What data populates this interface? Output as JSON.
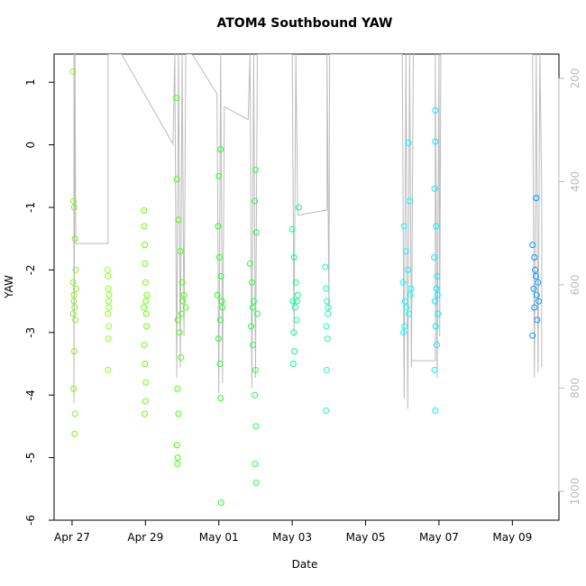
{
  "chart_data": {
    "type": "scatter",
    "title": "ATOM4 Southbound YAW",
    "x_label": "Date",
    "y_label": "YAW",
    "xlim": [
      -0.49,
      13.27
    ],
    "xticks": [
      {
        "value": 0,
        "label": "Apr 27"
      },
      {
        "value": 2,
        "label": "Apr 29"
      },
      {
        "value": 4,
        "label": "May 01"
      },
      {
        "value": 6,
        "label": "May 03"
      },
      {
        "value": 8,
        "label": "May 05"
      },
      {
        "value": 10,
        "label": "May 07"
      },
      {
        "value": 12,
        "label": "May 09"
      }
    ],
    "ylim": [
      -6,
      1.45
    ],
    "yticks": [
      -6,
      -5,
      -4,
      -3,
      -2,
      -1,
      0,
      1
    ],
    "y2lim": [
      1056,
      153
    ],
    "y2ticks": [
      200,
      400,
      600,
      800,
      1000
    ],
    "series": [
      {
        "color": "#bbbbbb",
        "axis": "y2",
        "x": [
          0.05,
          0.05,
          0.08,
          0.1,
          0.98,
          0.98,
          1.35,
          2.75,
          2.8,
          2.85,
          2.9,
          2.95,
          3.0,
          3.05,
          3.1,
          3.27,
          3.95,
          4.0,
          4.05,
          4.1,
          4.15,
          4.8,
          4.85,
          4.9,
          4.95,
          5.0,
          5.05,
          6.0,
          6.05,
          6.1,
          6.15,
          6.95,
          6.95,
          7.0,
          7.02,
          9.0,
          9.05,
          9.1,
          9.15,
          9.2,
          9.25,
          9.3,
          9.25,
          9.9,
          9.9,
          9.95,
          10.0,
          10.02,
          10.05,
          12.55,
          12.6,
          12.65,
          12.7,
          12.75,
          12.8,
          12.8
        ],
        "values": [
          153,
          830,
          153,
          520,
          520,
          153,
          153,
          327,
          153,
          780,
          153,
          760,
          153,
          700,
          153,
          153,
          230,
          810,
          153,
          790,
          255,
          280,
          153,
          800,
          153,
          780,
          153,
          153,
          700,
          153,
          465,
          455,
          153,
          650,
          153,
          153,
          820,
          153,
          840,
          153,
          760,
          153,
          747,
          747,
          153,
          780,
          153,
          700,
          153,
          153,
          780,
          153,
          770,
          153,
          420,
          760
        ]
      },
      {
        "color": "#88ee22",
        "x": [
          0.02,
          0.04,
          0.06,
          0.08,
          0.1,
          0.03,
          0.05,
          0.07,
          0.09,
          0.11,
          0.05,
          0.06,
          0.04,
          0.08,
          0.07,
          0.03
        ],
        "values": [
          1.17,
          -0.9,
          -1.0,
          -1.5,
          -2.0,
          -2.2,
          -2.4,
          -2.6,
          -2.8,
          -2.3,
          -2.5,
          -3.3,
          -3.9,
          -4.3,
          -4.62,
          -2.7
        ]
      },
      {
        "color": "#88ff22",
        "x": [
          0.97,
          0.98,
          0.99,
          1.0,
          1.01,
          0.98,
          1.0,
          0.99,
          1.01,
          0.98
        ],
        "values": [
          -2.0,
          -2.1,
          -2.3,
          -2.5,
          -2.6,
          -2.7,
          -2.9,
          -3.1,
          -2.4,
          -3.6
        ]
      },
      {
        "color": "#66ff00",
        "x": [
          1.96,
          1.97,
          1.98,
          1.99,
          2.0,
          2.01,
          2.02,
          2.03,
          1.97,
          1.99,
          2.01,
          2.0,
          1.98,
          2.04,
          1.96
        ],
        "values": [
          -1.05,
          -1.3,
          -1.6,
          -1.9,
          -2.2,
          -2.5,
          -2.7,
          -2.9,
          -3.2,
          -3.5,
          -3.8,
          -4.1,
          -4.3,
          -2.4,
          -2.6
        ]
      },
      {
        "color": "#44ff00",
        "x": [
          2.85,
          2.86,
          2.9,
          2.95,
          3.0,
          3.05,
          3.1,
          2.88,
          2.93,
          2.97,
          2.87,
          2.9,
          2.86,
          2.88,
          2.87,
          3.02,
          2.98
        ],
        "values": [
          0.75,
          -0.55,
          -1.2,
          -1.7,
          -2.2,
          -2.4,
          -2.6,
          -2.8,
          -3.0,
          -3.4,
          -3.9,
          -4.3,
          -4.8,
          -5.0,
          -5.1,
          -2.5,
          -2.7
        ]
      },
      {
        "color": "#22ff22",
        "x": [
          4.05,
          4.0,
          3.98,
          4.02,
          4.06,
          3.96,
          4.1,
          4.04,
          3.99,
          4.03,
          4.05,
          4.06,
          4.08
        ],
        "values": [
          -0.07,
          -0.5,
          -1.3,
          -1.8,
          -2.1,
          -2.4,
          -2.6,
          -2.8,
          -3.1,
          -3.5,
          -4.05,
          -5.72,
          -2.5
        ]
      },
      {
        "color": "#22ff44",
        "x": [
          5.0,
          4.98,
          5.02,
          4.85,
          4.9,
          4.95,
          5.05,
          4.88,
          4.93,
          5.0,
          4.98,
          5.01,
          4.99,
          5.02,
          4.92
        ],
        "values": [
          -0.4,
          -0.9,
          -1.4,
          -1.9,
          -2.2,
          -2.5,
          -2.7,
          -2.9,
          -3.2,
          -3.6,
          -4.0,
          -4.5,
          -5.1,
          -5.4,
          -2.6
        ]
      },
      {
        "color": "#00ff88",
        "x": [
          6.18,
          6.0,
          6.05,
          6.1,
          6.15,
          6.02,
          6.08,
          6.12,
          6.04,
          6.06,
          6.03,
          6.13
        ],
        "values": [
          -1.0,
          -1.35,
          -1.8,
          -2.2,
          -2.4,
          -2.5,
          -2.6,
          -2.8,
          -3.0,
          -3.3,
          -3.5,
          -2.5
        ]
      },
      {
        "color": "#11ffaa",
        "x": [
          6.9,
          6.92,
          6.95,
          6.97,
          6.93,
          6.96,
          6.94,
          6.92,
          6.98
        ],
        "values": [
          -1.95,
          -2.3,
          -2.5,
          -2.7,
          -2.9,
          -3.1,
          -3.6,
          -4.25,
          -2.6
        ]
      },
      {
        "color": "#00ffff",
        "x": [
          9.17,
          9.2,
          9.05,
          9.1,
          9.15,
          9.02,
          9.22,
          9.08,
          9.12,
          9.18,
          9.06,
          9.03,
          9.24
        ],
        "values": [
          0.03,
          -0.9,
          -1.3,
          -1.7,
          -2.0,
          -2.2,
          -2.4,
          -2.5,
          -2.6,
          -2.7,
          -2.9,
          -3.0,
          -2.3
        ]
      },
      {
        "color": "#00eeff",
        "x": [
          9.9,
          9.9,
          9.88,
          9.92,
          9.87,
          9.95,
          9.93,
          9.89,
          9.97,
          9.91,
          9.94,
          9.88,
          9.9,
          9.96
        ],
        "values": [
          0.55,
          0.05,
          -0.7,
          -1.3,
          -1.8,
          -2.1,
          -2.3,
          -2.5,
          -2.7,
          -2.9,
          -3.2,
          -3.6,
          -4.25,
          -2.4
        ]
      },
      {
        "color": "#0099ff",
        "x": [
          12.65,
          12.55,
          12.6,
          12.62,
          12.7,
          12.58,
          12.66,
          12.72,
          12.6,
          12.68,
          12.55,
          12.64
        ],
        "values": [
          -0.85,
          -1.6,
          -1.8,
          -2.0,
          -2.2,
          -2.3,
          -2.4,
          -2.5,
          -2.6,
          -2.8,
          -3.05,
          -2.1
        ]
      }
    ]
  }
}
